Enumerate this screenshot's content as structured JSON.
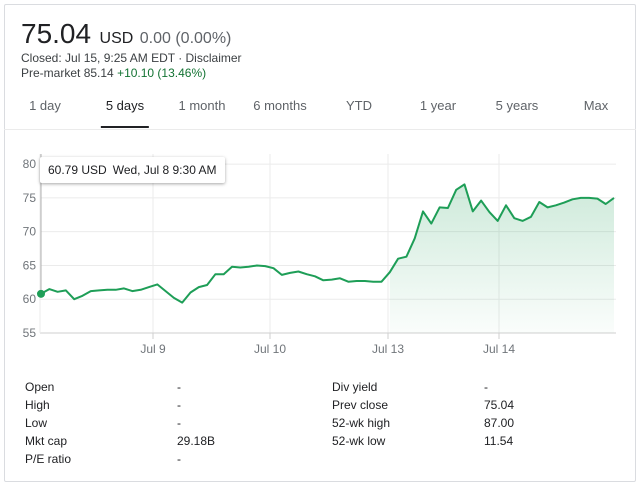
{
  "quote": {
    "price": "75.04",
    "currency": "USD",
    "change": "0.00 (0.00%)",
    "closed_text": "Closed: Jul 15, 9:25 AM EDT · Disclaimer",
    "premarket_label": "Pre-market",
    "premarket_price": "85.14",
    "premarket_change": "+10.10 (13.46%)",
    "positive_color": "#137333"
  },
  "tabs": [
    {
      "label": "1 day"
    },
    {
      "label": "5 days",
      "active": true
    },
    {
      "label": "1 month"
    },
    {
      "label": "6 months"
    },
    {
      "label": "YTD"
    },
    {
      "label": "1 year"
    },
    {
      "label": "5 years"
    },
    {
      "label": "Max"
    }
  ],
  "tooltip": {
    "value": "60.79 USD",
    "time": "Wed, Jul 8 9:30 AM"
  },
  "chart_data": {
    "type": "area",
    "x_ticks": [
      "Jul 9",
      "Jul 10",
      "Jul 13",
      "Jul 14"
    ],
    "y_ticks": [
      55,
      60,
      65,
      70,
      75,
      80
    ],
    "ylim": [
      55,
      81.5
    ],
    "grid": true,
    "line_color": "#1e9e57",
    "values": [
      60.8,
      61.5,
      61.1,
      61.3,
      60.0,
      60.5,
      61.2,
      61.3,
      61.4,
      61.4,
      61.6,
      61.2,
      61.4,
      61.8,
      62.2,
      61.2,
      60.2,
      59.5,
      61.0,
      61.8,
      62.1,
      63.7,
      63.7,
      64.8,
      64.7,
      64.8,
      65.0,
      64.9,
      64.6,
      63.6,
      63.9,
      64.1,
      63.7,
      63.4,
      62.8,
      62.9,
      63.1,
      62.6,
      62.7,
      62.7,
      62.6,
      62.6,
      64.0,
      66.0,
      66.3,
      69.0,
      73.0,
      71.2,
      73.6,
      73.5,
      76.2,
      77.0,
      73.0,
      74.6,
      72.9,
      71.6,
      73.9,
      72.0,
      71.6,
      72.2,
      74.4,
      73.6,
      73.9,
      74.3,
      74.8,
      75.0,
      75.0,
      74.9,
      74.1,
      75.0
    ]
  },
  "stats": {
    "left": [
      {
        "label": "Open",
        "value": "-"
      },
      {
        "label": "High",
        "value": "-"
      },
      {
        "label": "Low",
        "value": "-"
      },
      {
        "label": "Mkt cap",
        "value": "29.18B"
      },
      {
        "label": "P/E ratio",
        "value": "-"
      }
    ],
    "right": [
      {
        "label": "Div yield",
        "value": "-"
      },
      {
        "label": "Prev close",
        "value": "75.04"
      },
      {
        "label": "52-wk high",
        "value": "87.00"
      },
      {
        "label": "52-wk low",
        "value": "11.54"
      }
    ]
  }
}
